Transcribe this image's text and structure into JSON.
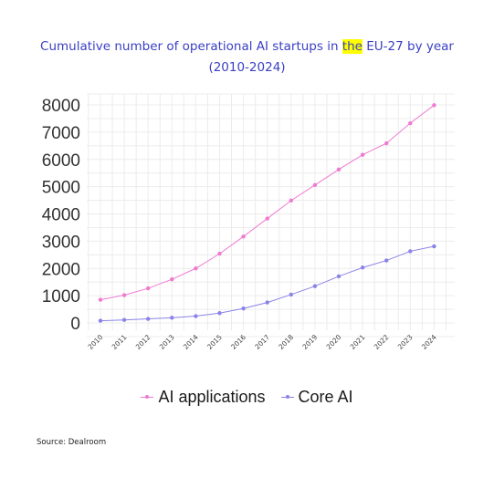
{
  "title_part1": "Cumulative number of operational AI startups in ",
  "title_highlight": "the",
  "title_part2": " EU-27 by year",
  "title_line2": "(2010-2024)",
  "source": "Source: Dealroom",
  "colors": {
    "title": "#3a3fc4",
    "highlight": "#ffff00",
    "ai_applications": "#f07ad0",
    "core_ai": "#8a83e8",
    "grid": "#ececec"
  },
  "chart_data": {
    "type": "line",
    "x": [
      "2010",
      "2011",
      "2012",
      "2013",
      "2014",
      "2015",
      "2016",
      "2017",
      "2018",
      "2019",
      "2020",
      "2021",
      "2022",
      "2023",
      "2024"
    ],
    "series": [
      {
        "name": "AI applications",
        "color": "#f07ad0",
        "values": [
          850,
          1020,
          1270,
          1600,
          2000,
          2540,
          3170,
          3830,
          4490,
          5060,
          5630,
          6170,
          6590,
          7330,
          7990
        ]
      },
      {
        "name": "Core AI",
        "color": "#8a83e8",
        "values": [
          80,
          110,
          150,
          190,
          250,
          360,
          530,
          750,
          1040,
          1350,
          1710,
          2030,
          2290,
          2630,
          2810
        ]
      }
    ],
    "yticks": [
      0,
      1000,
      2000,
      3000,
      4000,
      5000,
      6000,
      7000,
      8000
    ],
    "ylim": [
      0,
      8000
    ],
    "grid": true,
    "legend_position": "bottom"
  }
}
